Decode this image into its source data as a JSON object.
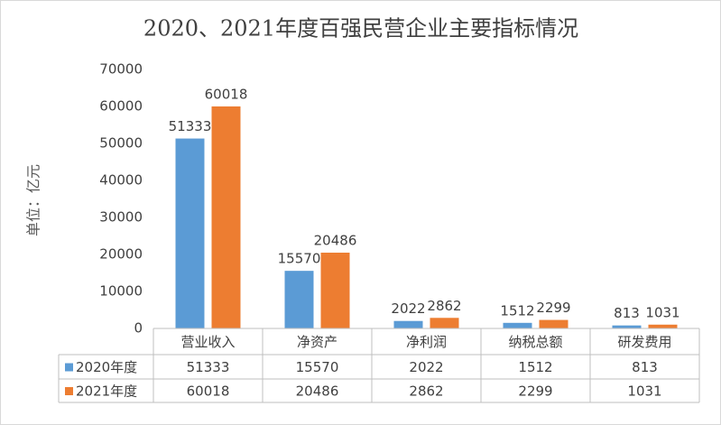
{
  "chart_data": {
    "type": "bar",
    "title": "2020、2021年度百强民营企业主要指标情况",
    "y_label": "单位：亿元",
    "categories": [
      "营业收入",
      "净资产",
      "净利润",
      "纳税总额",
      "研发费用"
    ],
    "series": [
      {
        "name": "2020年度",
        "color": "#5b9bd5",
        "values": [
          51333,
          15570,
          2022,
          1512,
          813
        ]
      },
      {
        "name": "2021年度",
        "color": "#ed7d31",
        "values": [
          60018,
          20486,
          2862,
          2299,
          1031
        ]
      }
    ],
    "ylim": [
      0,
      70000
    ],
    "yticks": [
      0,
      10000,
      20000,
      30000,
      40000,
      50000,
      60000,
      70000
    ],
    "grid": false
  }
}
